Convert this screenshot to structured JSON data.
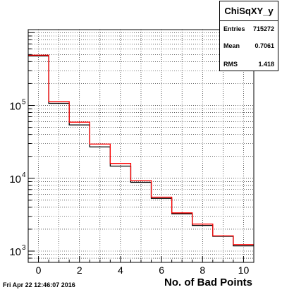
{
  "chart_data": {
    "type": "line",
    "title": "",
    "xlabel": "No. of Bad Points",
    "ylabel": "",
    "x_ticks": [
      "0",
      "2",
      "4",
      "6",
      "8",
      "10"
    ],
    "y_ticks": [
      {
        "base": "10",
        "exp": "3",
        "value": 1000
      },
      {
        "base": "10",
        "exp": "4",
        "value": 10000
      },
      {
        "base": "10",
        "exp": "5",
        "value": 100000
      }
    ],
    "xlim": [
      -0.5,
      10.5
    ],
    "ylim": [
      700,
      1100000
    ],
    "log_y": true,
    "grid": true,
    "bin_edges": [
      -0.5,
      0.5,
      1.5,
      2.5,
      3.5,
      4.5,
      5.5,
      6.5,
      7.5,
      8.5,
      9.5,
      10.5
    ],
    "series": [
      {
        "color": "#000000",
        "values": [
          480000,
          107000,
          54000,
          27000,
          14700,
          8800,
          5300,
          3250,
          2250,
          1600,
          1180
        ]
      },
      {
        "color": "#ff0000",
        "values": [
          490000,
          113000,
          59000,
          29500,
          16000,
          9300,
          5500,
          3350,
          2350,
          1620,
          1230
        ]
      }
    ]
  },
  "stats": {
    "title": "ChiSqXY_y",
    "rows": [
      {
        "label": "Entries",
        "value": "715272"
      },
      {
        "label": "Mean",
        "value": "0.7061"
      },
      {
        "label": "RMS",
        "value": "1.418"
      }
    ]
  },
  "footer": "Fri Apr 22 12:46:07 2016"
}
